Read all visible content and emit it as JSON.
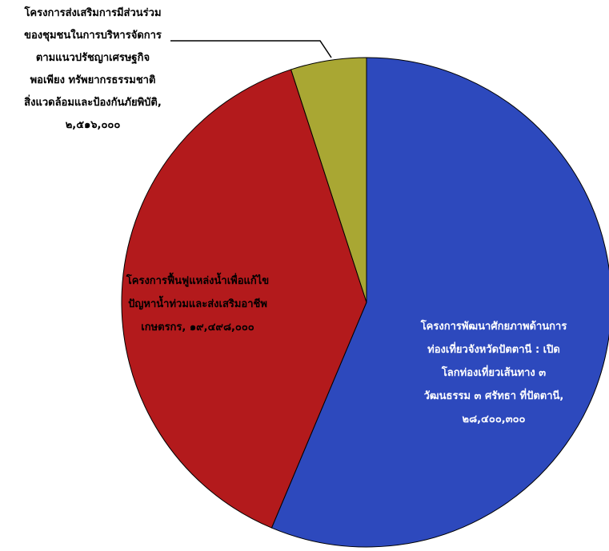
{
  "chart_data": {
    "type": "pie",
    "title": "",
    "start_angle_deg": 0,
    "direction": "clockwise",
    "slices": [
      {
        "name": "โครงการพัฒนาศักยภาพด้านการท่องเที่ยวจังหวัดปัตตานี : เปิดโลกท่องเที่ยวเส้นทาง ๓ วัฒนธรรม ๓ ศรัทธา ที่ปัตตานี",
        "value": 28400300,
        "value_label": "๒๘,๔๐๐,๓๐๐",
        "color": "#2d49bd",
        "label_lines": [
          "โครงการพัฒนาศักยภาพด้านการ",
          "ท่องเที่ยวจังหวัดปัตตานี : เปิด",
          "โลกท่องเที่ยวเส้นทาง ๓",
          "วัฒนธรรม ๓ ศรัทธา ที่ปัตตานี,",
          "๒๘,๔๐๐,๓๐๐"
        ],
        "label_color": "#ffffff"
      },
      {
        "name": "โครงการฟื้นฟูแหล่งน้ำเพื่อแก้ไขปัญหาน้ำท่วมและส่งเสริมอาชีพเกษตรกร",
        "value": 19498000,
        "value_label": "๑๙,๔๙๘,๐๐๐",
        "color": "#b31a1c",
        "label_lines": [
          "โครงการฟื้นฟูแหล่งน้ำเพื่อแก้ไข",
          "ปัญหาน้ำท่วมและส่งเสริมอาชีพ",
          "เกษตรกร, ๑๙,๔๙๘,๐๐๐"
        ],
        "label_color": "#000000"
      },
      {
        "name": "โครงการส่งเสริมการมีส่วนร่วมของชุมชนในการบริหารจัดการตามแนวปรัชญาเศรษฐกิจพอเพียง ทรัพยากรธรรมชาติ สิ่งแวดล้อมและป้องกันภัยพิบัติ",
        "value": 2516000,
        "value_label": "๒,๕๑๖,๐๐๐",
        "color": "#a9a733",
        "label_lines": [
          "โครงการส่งเสริมการมีส่วนร่วม",
          "ของชุมชนในการบริหารจัดการ",
          "ตามแนวปรัชญาเศรษฐกิจ",
          "พอเพียง ทรัพยากรธรรมชาติ",
          "สิ่งแวดล้อมและป้องกันภัยพิบัติ,",
          "๒,๕๑๖,๐๐๐"
        ],
        "label_color": "#000000"
      }
    ]
  }
}
